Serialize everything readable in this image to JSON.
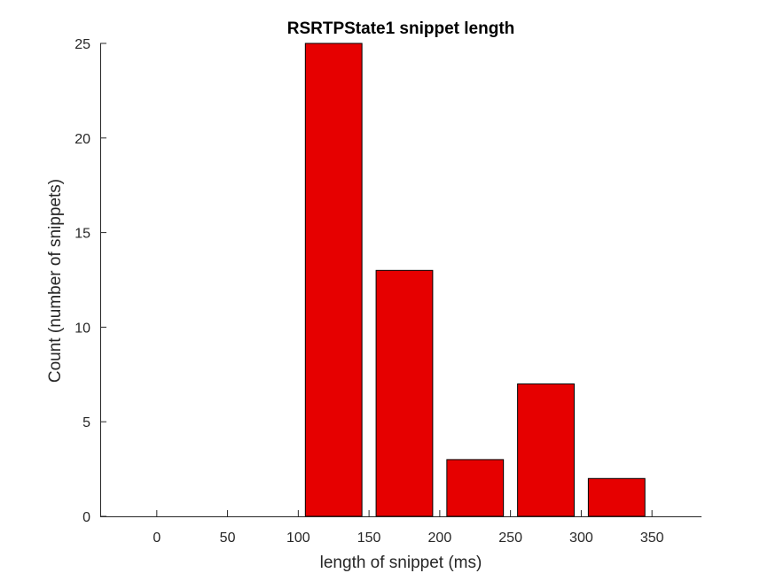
{
  "chart_data": {
    "type": "bar",
    "title": "RSRTPState1 snippet length",
    "xlabel": "length of snippet (ms)",
    "ylabel": "Count (number of snippets)",
    "xlim": [
      -40,
      385
    ],
    "ylim": [
      0,
      25
    ],
    "xticks": [
      "0",
      "50",
      "100",
      "150",
      "200",
      "250",
      "300",
      "350"
    ],
    "yticks": [
      "0",
      "5",
      "10",
      "15",
      "20",
      "25"
    ],
    "categories": [
      "125",
      "175",
      "225",
      "275",
      "325"
    ],
    "x": [
      125,
      175,
      225,
      275,
      325
    ],
    "bar_width": 40,
    "values": [
      25,
      13,
      3,
      7,
      2
    ],
    "bar_color": "#e60000",
    "edge_color": "#000000",
    "grid": false
  }
}
